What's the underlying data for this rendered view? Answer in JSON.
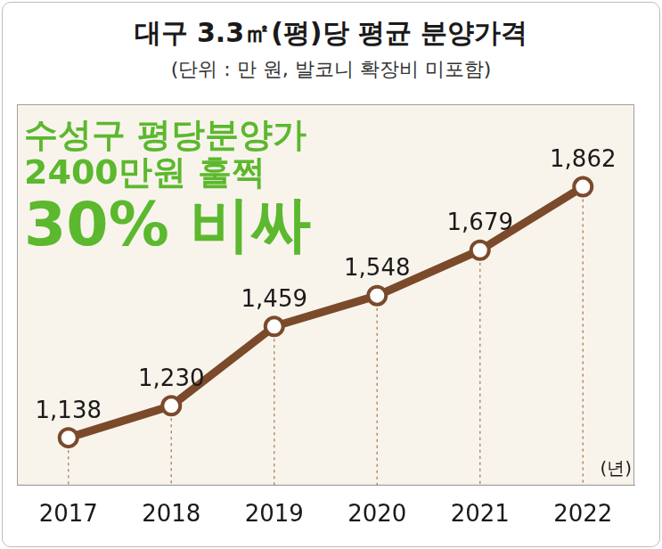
{
  "chart_data": {
    "type": "line",
    "title": "대구 3.3㎡(평)당 평균 분양가격",
    "subtitle": "(단위 : 만 원, 발코니 확장비 미포함)",
    "annotations": [
      "수성구 평당분양가",
      "2400만원 훌쩍",
      "30% 비싸"
    ],
    "xlabel": "(년)",
    "categories": [
      "2017",
      "2018",
      "2019",
      "2020",
      "2021",
      "2022"
    ],
    "values": [
      1138,
      1230,
      1459,
      1548,
      1679,
      1862
    ],
    "value_labels": [
      "1,138",
      "1,230",
      "1,459",
      "1,548",
      "1,679",
      "1,862"
    ],
    "color": "#7b4a2b",
    "marker": "circle",
    "ylim": [
      1000,
      2100
    ],
    "grid": false,
    "data_labels": true,
    "tick_labels": "x"
  }
}
